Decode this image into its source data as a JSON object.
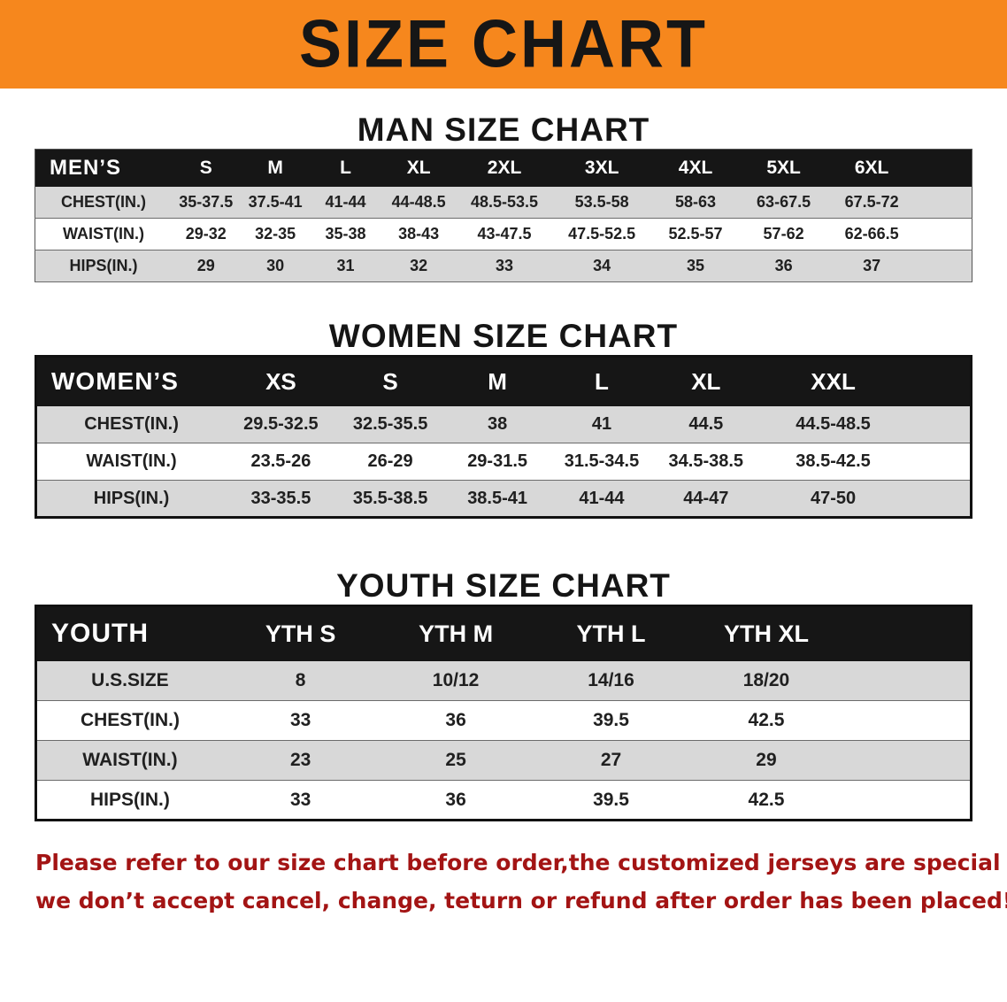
{
  "banner": {
    "title": "SIZE CHART"
  },
  "colors": {
    "banner_bg": "#f6871d",
    "header_bg": "#161616",
    "row_alt": "#d8d8d8",
    "footer_text": "#a31414"
  },
  "chart_data": [
    {
      "type": "table",
      "title": "MAN SIZE CHART",
      "header": [
        "MEN’S",
        "S",
        "M",
        "L",
        "XL",
        "2XL",
        "3XL",
        "4XL",
        "5XL",
        "6XL"
      ],
      "rows": [
        [
          "CHEST(IN.)",
          "35-37.5",
          "37.5-41",
          "41-44",
          "44-48.5",
          "48.5-53.5",
          "53.5-58",
          "58-63",
          "63-67.5",
          "67.5-72"
        ],
        [
          "WAIST(IN.)",
          "29-32",
          "32-35",
          "35-38",
          "38-43",
          "43-47.5",
          "47.5-52.5",
          "52.5-57",
          "57-62",
          "62-66.5"
        ],
        [
          "HIPS(IN.)",
          "29",
          "30",
          "31",
          "32",
          "33",
          "34",
          "35",
          "36",
          "37"
        ]
      ]
    },
    {
      "type": "table",
      "title": "WOMEN SIZE CHART",
      "header": [
        "WOMEN’S",
        "XS",
        "S",
        "M",
        "L",
        "XL",
        "XXL"
      ],
      "rows": [
        [
          "CHEST(IN.)",
          "29.5-32.5",
          "32.5-35.5",
          "38",
          "41",
          "44.5",
          "44.5-48.5"
        ],
        [
          "WAIST(IN.)",
          "23.5-26",
          "26-29",
          "29-31.5",
          "31.5-34.5",
          "34.5-38.5",
          "38.5-42.5"
        ],
        [
          "HIPS(IN.)",
          "33-35.5",
          "35.5-38.5",
          "38.5-41",
          "41-44",
          "44-47",
          "47-50"
        ]
      ]
    },
    {
      "type": "table",
      "title": "YOUTH SIZE CHART",
      "header": [
        "YOUTH",
        "YTH S",
        "YTH M",
        "YTH L",
        "YTH XL"
      ],
      "rows": [
        [
          "U.S.SIZE",
          "8",
          "10/12",
          "14/16",
          "18/20"
        ],
        [
          "CHEST(IN.)",
          "33",
          "36",
          "39.5",
          "42.5"
        ],
        [
          "WAIST(IN.)",
          "23",
          "25",
          "27",
          "29"
        ],
        [
          "HIPS(IN.)",
          "33",
          "36",
          "39.5",
          "42.5"
        ]
      ]
    }
  ],
  "footer": {
    "line1": "Please refer to our size chart before order,the customized jerseys are special products,",
    "line2": "we don’t accept cancel, change, teturn or refund after order has been placed!"
  }
}
